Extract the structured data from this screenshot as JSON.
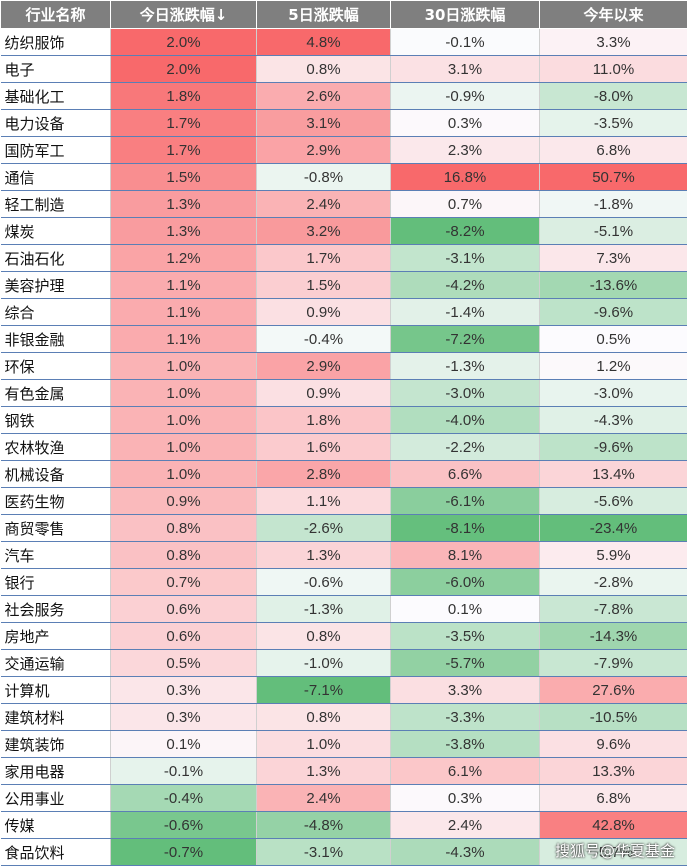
{
  "headers": [
    "行业名称",
    "今日涨跌幅↓",
    "5日涨跌幅",
    "30日涨跌幅",
    "今年以来"
  ],
  "rows": [
    [
      "纺织服饰",
      "2.0%",
      "4.8%",
      "-0.1%",
      "3.3%"
    ],
    [
      "电子",
      "2.0%",
      "0.8%",
      "3.1%",
      "11.0%"
    ],
    [
      "基础化工",
      "1.8%",
      "2.6%",
      "-0.9%",
      "-8.0%"
    ],
    [
      "电力设备",
      "1.7%",
      "3.1%",
      "0.3%",
      "-3.5%"
    ],
    [
      "国防军工",
      "1.7%",
      "2.9%",
      "2.3%",
      "6.8%"
    ],
    [
      "通信",
      "1.5%",
      "-0.8%",
      "16.8%",
      "50.7%"
    ],
    [
      "轻工制造",
      "1.3%",
      "2.4%",
      "0.7%",
      "-1.8%"
    ],
    [
      "煤炭",
      "1.3%",
      "3.2%",
      "-8.2%",
      "-5.1%"
    ],
    [
      "石油石化",
      "1.2%",
      "1.7%",
      "-3.1%",
      "7.3%"
    ],
    [
      "美容护理",
      "1.1%",
      "1.5%",
      "-4.2%",
      "-13.6%"
    ],
    [
      "综合",
      "1.1%",
      "0.9%",
      "-1.4%",
      "-9.6%"
    ],
    [
      "非银金融",
      "1.1%",
      "-0.4%",
      "-7.2%",
      "0.5%"
    ],
    [
      "环保",
      "1.0%",
      "2.9%",
      "-1.3%",
      "1.2%"
    ],
    [
      "有色金属",
      "1.0%",
      "0.9%",
      "-3.0%",
      "-3.0%"
    ],
    [
      "钢铁",
      "1.0%",
      "1.8%",
      "-4.0%",
      "-4.3%"
    ],
    [
      "农林牧渔",
      "1.0%",
      "1.6%",
      "-2.2%",
      "-9.6%"
    ],
    [
      "机械设备",
      "1.0%",
      "2.8%",
      "6.6%",
      "13.4%"
    ],
    [
      "医药生物",
      "0.9%",
      "1.1%",
      "-6.1%",
      "-5.6%"
    ],
    [
      "商贸零售",
      "0.8%",
      "-2.6%",
      "-8.1%",
      "-23.4%"
    ],
    [
      "汽车",
      "0.8%",
      "1.3%",
      "8.1%",
      "5.9%"
    ],
    [
      "银行",
      "0.7%",
      "-0.6%",
      "-6.0%",
      "-2.8%"
    ],
    [
      "社会服务",
      "0.6%",
      "-1.3%",
      "0.1%",
      "-7.8%"
    ],
    [
      "房地产",
      "0.6%",
      "0.8%",
      "-3.5%",
      "-14.3%"
    ],
    [
      "交通运输",
      "0.5%",
      "-1.0%",
      "-5.7%",
      "-7.9%"
    ],
    [
      "计算机",
      "0.3%",
      "-7.1%",
      "3.3%",
      "27.6%"
    ],
    [
      "建筑材料",
      "0.3%",
      "0.8%",
      "-3.3%",
      "-10.5%"
    ],
    [
      "建筑装饰",
      "0.1%",
      "1.0%",
      "-3.8%",
      "9.6%"
    ],
    [
      "家用电器",
      "-0.1%",
      "1.3%",
      "6.1%",
      "13.3%"
    ],
    [
      "公用事业",
      "-0.4%",
      "2.4%",
      "0.3%",
      "6.8%"
    ],
    [
      "传媒",
      "-0.6%",
      "-4.8%",
      "2.4%",
      "42.8%"
    ],
    [
      "食品饮料",
      "-0.7%",
      "-3.1%",
      "-4.3%",
      "-5.7%"
    ]
  ],
  "watermark": "搜狐号@华夏基金",
  "colors": {
    "header_bg": "#7f7f7f",
    "positive": "#f8696b",
    "negative": "#63be7b",
    "neutral": "#fcfcff"
  }
}
